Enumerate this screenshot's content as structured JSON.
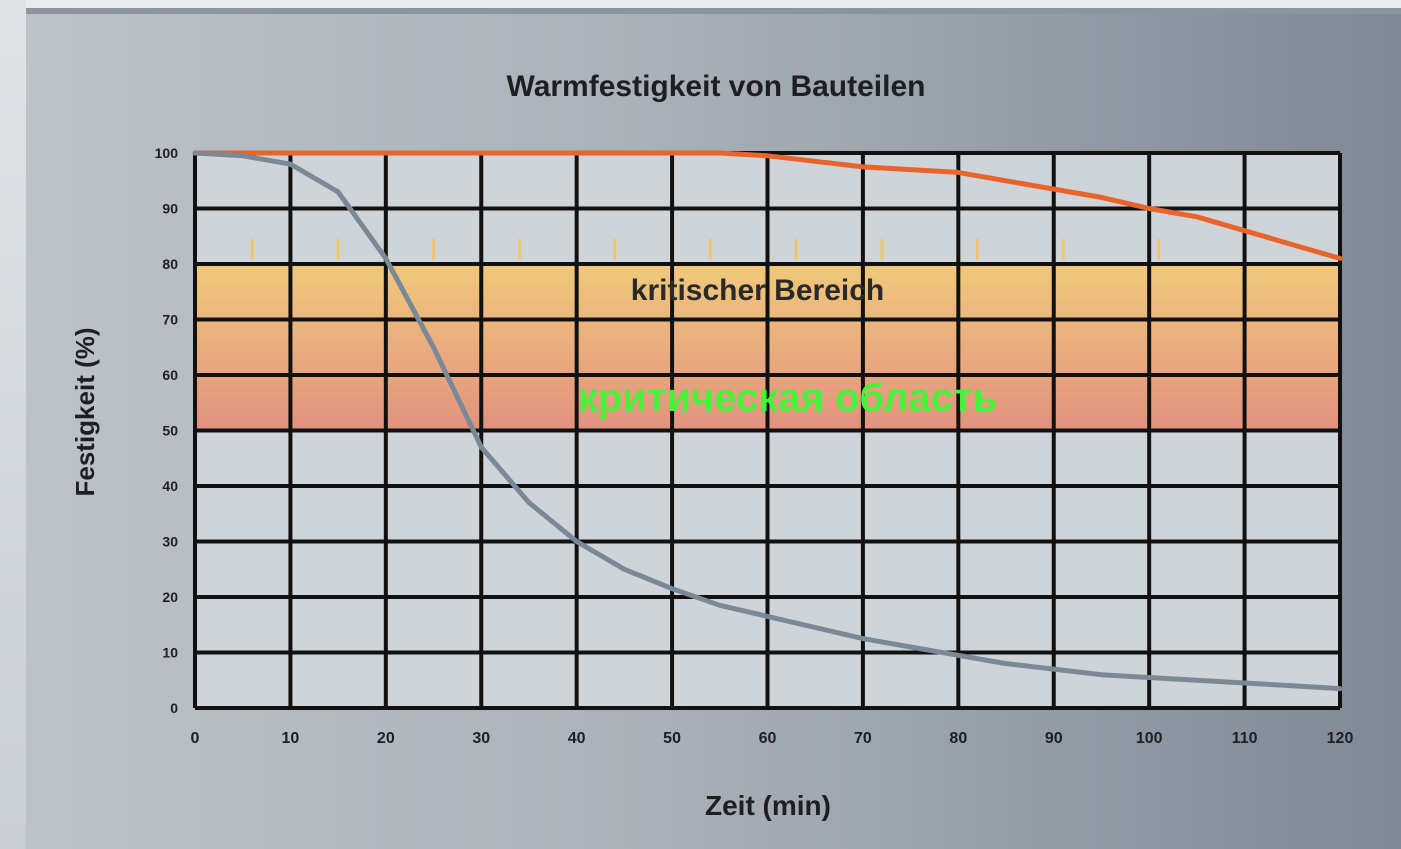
{
  "chart_data": {
    "type": "line",
    "title": "Warmfestigkeit von Bauteilen",
    "xlabel": "Zeit (min)",
    "ylabel": "Festigkeit (%)",
    "xlim": [
      0,
      120
    ],
    "ylim": [
      0,
      100
    ],
    "x_ticks": [
      0,
      10,
      20,
      30,
      40,
      50,
      60,
      70,
      80,
      90,
      100,
      110,
      120
    ],
    "y_ticks": [
      0,
      10,
      20,
      30,
      40,
      50,
      60,
      70,
      80,
      90,
      100
    ],
    "grid": true,
    "critical_region": {
      "label": "kritischer Bereich",
      "overlay_label": "критическая область",
      "y_range": [
        50,
        80
      ]
    },
    "critical_markers_x": [
      6,
      15,
      25,
      34,
      44,
      54,
      63,
      72,
      82,
      91,
      101
    ],
    "series": [
      {
        "color": "#e8642a",
        "x": [
          0,
          10,
          20,
          30,
          40,
          50,
          55,
          60,
          65,
          70,
          75,
          80,
          85,
          90,
          95,
          100,
          105,
          110,
          115,
          120
        ],
        "y": [
          100,
          100,
          100,
          100,
          100,
          100,
          100,
          99.5,
          98.5,
          97.5,
          97,
          96.5,
          95,
          93.5,
          92,
          90,
          88.5,
          86,
          83.5,
          81
        ]
      },
      {
        "color": "#7b8895",
        "x": [
          0,
          5,
          10,
          15,
          20,
          25,
          30,
          35,
          40,
          45,
          50,
          55,
          60,
          65,
          70,
          75,
          80,
          85,
          90,
          95,
          100,
          105,
          110,
          115,
          120
        ],
        "y": [
          100,
          99.5,
          98,
          93,
          81,
          65,
          47,
          37,
          30,
          25,
          21.5,
          18.5,
          16.5,
          14.5,
          12.5,
          11,
          9.5,
          8,
          7,
          6,
          5.5,
          5,
          4.5,
          4,
          3.5
        ]
      }
    ]
  }
}
